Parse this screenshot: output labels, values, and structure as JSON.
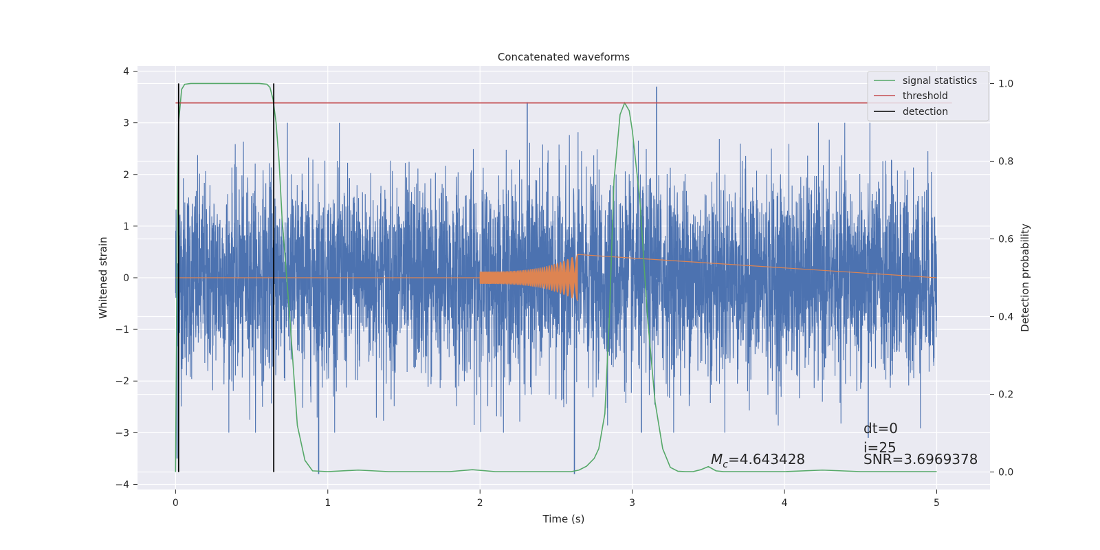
{
  "chart_data": {
    "type": "line",
    "title": "Concatenated waveforms",
    "xlabel": "Time (s)",
    "ylabel_left": "Whitened strain",
    "ylabel_right": "Detection probability",
    "xlim": [
      -0.25,
      5.35
    ],
    "ylim_left": [
      -4.1,
      4.1
    ],
    "ylim_right": [
      -0.045,
      1.045
    ],
    "x_ticks": [
      0,
      1,
      2,
      3,
      4,
      5
    ],
    "y_left_ticks": [
      -4,
      -3,
      -2,
      -1,
      0,
      1,
      2,
      3,
      4
    ],
    "y_right_ticks": [
      0.0,
      0.2,
      0.4,
      0.6,
      0.8,
      1.0
    ],
    "grid": true,
    "background_color": "#eaeaf2",
    "legend_position": "top-right",
    "series": [
      {
        "name": "signal statistics",
        "axis": "right",
        "color": "#55a868",
        "x": [
          0.0,
          0.01,
          0.02,
          0.04,
          0.06,
          0.1,
          0.2,
          0.4,
          0.55,
          0.6,
          0.62,
          0.64,
          0.66,
          0.68,
          0.7,
          0.75,
          0.8,
          0.85,
          0.9,
          1.0,
          1.2,
          1.4,
          1.6,
          1.8,
          1.95,
          2.1,
          2.3,
          2.5,
          2.6,
          2.65,
          2.7,
          2.75,
          2.78,
          2.82,
          2.85,
          2.88,
          2.92,
          2.95,
          2.98,
          3.0,
          3.05,
          3.1,
          3.15,
          3.2,
          3.25,
          3.3,
          3.35,
          3.4,
          3.45,
          3.5,
          3.55,
          3.6,
          3.8,
          4.0,
          4.25,
          4.5,
          4.75,
          5.0
        ],
        "values": [
          0.0,
          0.6,
          0.9,
          0.985,
          0.998,
          1.0,
          1.0,
          1.0,
          1.0,
          0.998,
          0.99,
          0.96,
          0.9,
          0.8,
          0.65,
          0.4,
          0.12,
          0.03,
          0.003,
          0.001,
          0.005,
          0.001,
          0.001,
          0.001,
          0.006,
          0.001,
          0.001,
          0.001,
          0.001,
          0.005,
          0.015,
          0.035,
          0.06,
          0.15,
          0.4,
          0.75,
          0.92,
          0.95,
          0.93,
          0.88,
          0.7,
          0.4,
          0.18,
          0.06,
          0.012,
          0.002,
          0.001,
          0.001,
          0.006,
          0.014,
          0.003,
          0.001,
          0.001,
          0.001,
          0.005,
          0.001,
          0.001,
          0.001
        ]
      },
      {
        "name": "threshold",
        "axis": "right",
        "color": "#c44e52",
        "x": [
          0.0,
          5.1
        ],
        "values": [
          0.95,
          0.95
        ]
      },
      {
        "name": "detection",
        "axis": "right",
        "color": "#000000",
        "x": [
          0.02,
          0.645
        ],
        "values": [
          1.0,
          1.0
        ]
      }
    ],
    "noise_series": {
      "axis": "left",
      "color": "#4c72b0",
      "x_range": [
        0,
        5
      ],
      "approx_std": 0.95,
      "spikes": [
        {
          "x": 0.01,
          "y": -3.5
        },
        {
          "x": 0.94,
          "y": -3.8
        },
        {
          "x": 2.31,
          "y": 3.4
        },
        {
          "x": 2.62,
          "y": -3.8
        },
        {
          "x": 3.16,
          "y": 3.7
        },
        {
          "x": 3.06,
          "y": -3.0
        },
        {
          "x": 4.55,
          "y": -3.1
        }
      ]
    },
    "injected_signal": {
      "axis": "left",
      "color": "#dd8452",
      "x_start": 2.0,
      "x_end": 2.64,
      "amplitude_start": 0.12,
      "amplitude_end": 0.45
    },
    "annotations": {
      "mc_symbol": "M",
      "mc_subscript": "c",
      "mc_value": "=4.643428",
      "dt": "dt=0",
      "i": "i=25",
      "snr": "SNR=3.6969378"
    }
  }
}
